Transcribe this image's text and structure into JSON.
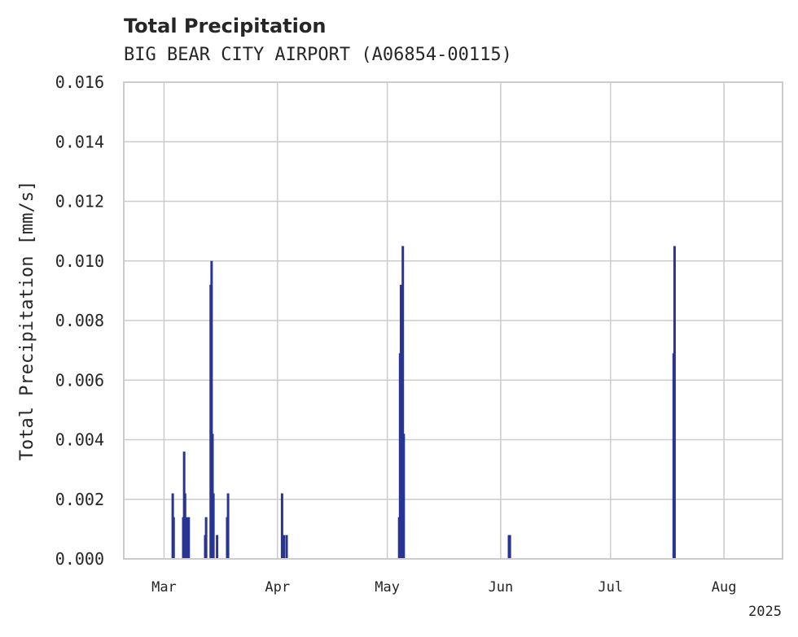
{
  "chart_data": {
    "type": "bar",
    "title": "Total Precipitation",
    "subtitle": "BIG BEAR CITY AIRPORT (A06854-00115)",
    "xlabel": "",
    "ylabel": "Total Precipitation [mm/s]",
    "x_offset_label": "2025",
    "ylim": [
      0,
      0.016
    ],
    "yticks": [
      "0.000",
      "0.002",
      "0.004",
      "0.006",
      "0.008",
      "0.010",
      "0.012",
      "0.014",
      "0.016"
    ],
    "xlim": [
      "2025-02-18",
      "2025-08-17"
    ],
    "xticks": [
      {
        "date": "2025-03-01",
        "label": "Mar"
      },
      {
        "date": "2025-04-01",
        "label": "Apr"
      },
      {
        "date": "2025-05-01",
        "label": "May"
      },
      {
        "date": "2025-06-01",
        "label": "Jun"
      },
      {
        "date": "2025-07-01",
        "label": "Jul"
      },
      {
        "date": "2025-08-01",
        "label": "Aug"
      }
    ],
    "grid": true,
    "series": [
      {
        "name": "Total Precipitation",
        "color": "#283593",
        "points": [
          {
            "t": "2025-03-03T09:00",
            "v": 0.0022
          },
          {
            "t": "2025-03-03T15:00",
            "v": 0.0014
          },
          {
            "t": "2025-03-06T06:00",
            "v": 0.0014
          },
          {
            "t": "2025-03-06T12:00",
            "v": 0.0036
          },
          {
            "t": "2025-03-06T18:00",
            "v": 0.0022
          },
          {
            "t": "2025-03-07T06:00",
            "v": 0.0014
          },
          {
            "t": "2025-03-07T12:00",
            "v": 0.0008
          },
          {
            "t": "2025-03-07T18:00",
            "v": 0.0014
          },
          {
            "t": "2025-03-12T06:00",
            "v": 0.0008
          },
          {
            "t": "2025-03-12T12:00",
            "v": 0.0014
          },
          {
            "t": "2025-03-13T18:00",
            "v": 0.0092
          },
          {
            "t": "2025-03-14T00:00",
            "v": 0.01
          },
          {
            "t": "2025-03-14T06:00",
            "v": 0.0042
          },
          {
            "t": "2025-03-14T12:00",
            "v": 0.0022
          },
          {
            "t": "2025-03-15T12:00",
            "v": 0.0008
          },
          {
            "t": "2025-03-18T06:00",
            "v": 0.0014
          },
          {
            "t": "2025-03-18T12:00",
            "v": 0.0022
          },
          {
            "t": "2025-04-02T06:00",
            "v": 0.0022
          },
          {
            "t": "2025-04-02T18:00",
            "v": 0.0008
          },
          {
            "t": "2025-04-03T12:00",
            "v": 0.0008
          },
          {
            "t": "2025-05-04T06:00",
            "v": 0.0014
          },
          {
            "t": "2025-05-04T12:00",
            "v": 0.0069
          },
          {
            "t": "2025-05-04T18:00",
            "v": 0.0092
          },
          {
            "t": "2025-05-05T06:00",
            "v": 0.0105
          },
          {
            "t": "2025-05-05T12:00",
            "v": 0.0042
          },
          {
            "t": "2025-06-03T06:00",
            "v": 0.0008
          },
          {
            "t": "2025-06-03T12:00",
            "v": 0.0008
          },
          {
            "t": "2025-07-18T06:00",
            "v": 0.0069
          },
          {
            "t": "2025-07-18T12:00",
            "v": 0.0105
          }
        ]
      }
    ]
  }
}
